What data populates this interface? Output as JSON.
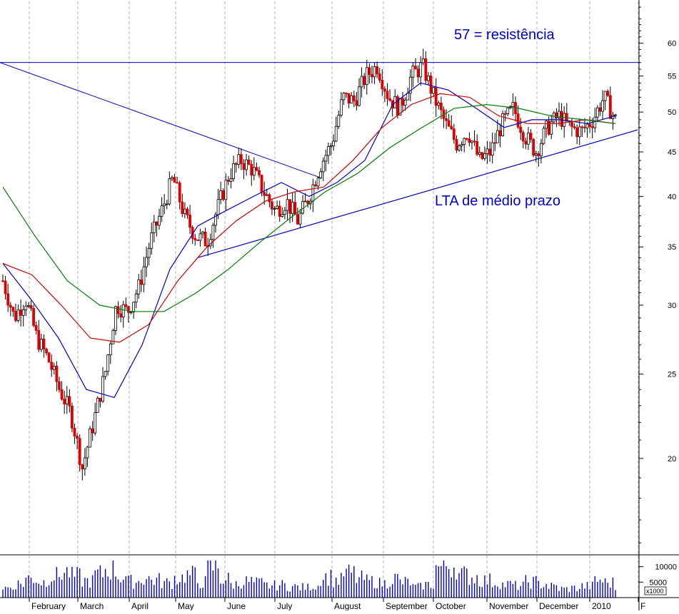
{
  "chart_data": {
    "type": "candlestick",
    "title": "",
    "y_scale": "log",
    "ylim": [
      15.5,
      67
    ],
    "y_ticks": [
      20,
      25,
      30,
      35,
      40,
      45,
      50,
      55,
      60
    ],
    "x_labels": [
      "February",
      "March",
      "April",
      "May",
      "June",
      "July",
      "August",
      "September",
      "October",
      "November",
      "December",
      "2010",
      "F"
    ],
    "grid": "vertical dashed at month starts",
    "annotations": {
      "resistance": "57 = resistência",
      "trendline": "LTA de médio prazo"
    },
    "resistance_level": 57,
    "moving_averages": [
      {
        "color": "#0000cc",
        "values": [
          33.5,
          30.5,
          27.5,
          24,
          23.5,
          27,
          33,
          37,
          38.5,
          40,
          41.5,
          40,
          41.5,
          44,
          51,
          54,
          53,
          50.5,
          48,
          49,
          49,
          48.5,
          49.5
        ]
      },
      {
        "color": "#cc0000",
        "values": [
          33.5,
          32.5,
          30,
          27.5,
          27.2,
          28.5,
          32,
          35,
          37.5,
          39.5,
          40.5,
          41,
          44,
          48,
          51,
          52.5,
          52,
          49.5,
          48.5,
          48.5,
          49,
          48.5
        ]
      },
      {
        "color": "#008000",
        "values": [
          41,
          36,
          32,
          30,
          29.5,
          29.5,
          31,
          33,
          35.5,
          38,
          40.5,
          42.5,
          45.5,
          48,
          50.5,
          51,
          50.5,
          49.5,
          49,
          48.5
        ]
      }
    ],
    "trendlines": [
      {
        "name": "resistance",
        "from": [
          "start",
          57
        ],
        "to": [
          "end",
          57
        ]
      },
      {
        "name": "downtrend",
        "from": [
          "start",
          57
        ],
        "to": [
          "July",
          42
        ]
      },
      {
        "name": "LTA",
        "from": [
          "May",
          34
        ],
        "to": [
          "end",
          48
        ]
      }
    ],
    "price_path_weekly": [
      32,
      29,
      30.5,
      27.5,
      26,
      24,
      22.5,
      19.5,
      22,
      25,
      30,
      29.5,
      31.5,
      35.5,
      38.5,
      42,
      38,
      36,
      35.5,
      39,
      42.5,
      44,
      43,
      40.5,
      38.5,
      39.5,
      37.5,
      40,
      43.5,
      46,
      52,
      51.5,
      55,
      56.5,
      52,
      50.5,
      55,
      56.5,
      52,
      48.5,
      46,
      47.5,
      44,
      45,
      48.5,
      50.5,
      47,
      45,
      48,
      49.5,
      48,
      47.5,
      49,
      52,
      49
    ],
    "volume_axis_labels": [
      "10000",
      "5000",
      "x1000"
    ],
    "volume_weekly": [
      3200,
      4500,
      6200,
      5100,
      7000,
      8200,
      6900,
      5400,
      7600,
      9100,
      6800,
      5200,
      6100,
      5700,
      4800,
      6400,
      7300,
      5000,
      9800,
      6000,
      4300,
      5200,
      4700,
      3900,
      4100,
      3500,
      3300,
      3800,
      6700,
      5600,
      7800,
      6100,
      5300,
      4600,
      6200,
      5000,
      3400,
      4200,
      9800,
      10500,
      7400,
      6700,
      5600,
      4900,
      4200,
      3800,
      5100,
      4400,
      3600,
      2800,
      3100,
      3700,
      5600,
      4800,
      3200
    ]
  }
}
